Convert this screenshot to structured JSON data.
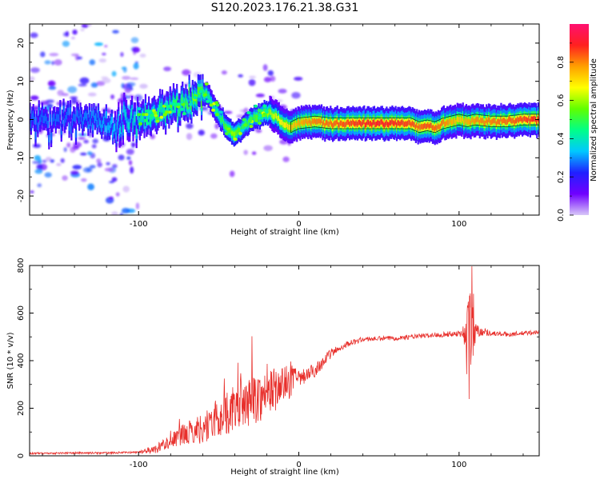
{
  "title": "S120.2023.176.21.38.G31",
  "chart_data": [
    {
      "type": "heatmap",
      "xlabel": "Height of straight line (km)",
      "ylabel": "Frequency (Hz)",
      "xlim": [
        -168,
        150
      ],
      "ylim": [
        -25,
        25
      ],
      "xticks": [
        -100,
        0,
        100
      ],
      "yticks": [
        -20,
        -10,
        0,
        10,
        20
      ],
      "colorbar": {
        "label": "Normalized spectral amplitude",
        "range": [
          0,
          1
        ],
        "ticks": [
          0.0,
          0.2,
          0.4,
          0.6,
          0.8
        ],
        "tick_labels": [
          "0.0",
          "0.2",
          "0.4",
          "0.6",
          "0.8"
        ],
        "colormap": [
          "#d8c8f8",
          "#7000ff",
          "#2020ff",
          "#00c8ff",
          "#00ff88",
          "#60ff00",
          "#ffff00",
          "#ffa000",
          "#ff2020",
          "#ff1070"
        ],
        "placement": "right"
      },
      "ridge": {
        "x": [
          -168,
          -140,
          -120,
          -100,
          -90,
          -80,
          -70,
          -62,
          -58,
          -55,
          -50,
          -45,
          -40,
          -35,
          -30,
          -25,
          -20,
          -15,
          -10,
          -5,
          0,
          10,
          20,
          30,
          40,
          50,
          60,
          70,
          75,
          80,
          85,
          90,
          95,
          100,
          105,
          110,
          120,
          130,
          140,
          150
        ],
        "y": [
          0,
          0,
          -1,
          0,
          1,
          3,
          4,
          6,
          7,
          5,
          1,
          -2,
          -4,
          -2,
          0,
          1,
          2,
          1,
          -1,
          -2,
          -1,
          -0.5,
          -1,
          -1,
          -1,
          -1,
          -1,
          -1,
          -2,
          -1.5,
          -2,
          -1,
          -0.5,
          0,
          -0.5,
          0,
          -0.5,
          -0.5,
          0,
          0
        ],
        "peak_amplitude": [
          0.3,
          0.3,
          0.35,
          0.45,
          0.5,
          0.5,
          0.55,
          0.6,
          0.55,
          0.45,
          0.5,
          0.6,
          0.65,
          0.55,
          0.55,
          0.6,
          0.65,
          0.7,
          0.75,
          0.8,
          0.85,
          0.9,
          0.92,
          0.95,
          0.98,
          1.0,
          0.98,
          0.95,
          0.92,
          0.95,
          0.92,
          0.9,
          0.85,
          0.8,
          0.85,
          0.88,
          0.9,
          0.92,
          0.95,
          1.0
        ]
      }
    },
    {
      "type": "line",
      "xlabel": "Height of straight line (km)",
      "ylabel": "SNR (10 * v/v)",
      "xlim": [
        -168,
        150
      ],
      "ylim": [
        0,
        800
      ],
      "xticks": [
        -100,
        0,
        100
      ],
      "yticks": [
        0,
        200,
        400,
        600,
        800
      ],
      "color": "#e8302c",
      "envelope": {
        "x": [
          -168,
          -140,
          -120,
          -100,
          -90,
          -80,
          -70,
          -60,
          -50,
          -40,
          -30,
          -20,
          -10,
          0,
          10,
          20,
          30,
          40,
          60,
          80,
          100,
          104,
          106,
          108,
          110,
          120,
          130,
          140,
          150
        ],
        "y": [
          10,
          12,
          12,
          15,
          25,
          60,
          90,
          110,
          150,
          190,
          220,
          250,
          290,
          320,
          360,
          430,
          470,
          490,
          495,
          505,
          515,
          520,
          420,
          600,
          530,
          515,
          510,
          515,
          520
        ],
        "noise_amplitude": [
          8,
          8,
          8,
          8,
          20,
          40,
          60,
          80,
          110,
          120,
          130,
          130,
          100,
          70,
          60,
          40,
          25,
          20,
          20,
          20,
          25,
          80,
          300,
          250,
          60,
          20,
          20,
          20,
          20
        ]
      }
    }
  ]
}
